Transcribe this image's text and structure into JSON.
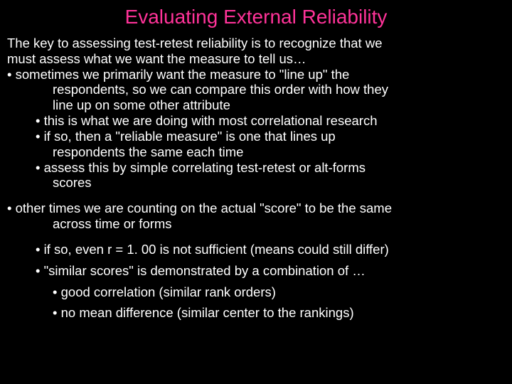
{
  "title_color": "#ff3399",
  "text_color": "#ffffff",
  "background_color": "#000000",
  "title": "Evaluating External Reliability",
  "intro1": "The key to assessing test-retest reliability is to recognize that we",
  "intro2": "must assess what we want the measure to tell us…",
  "b1_l1": "• sometimes we primarily want the measure to \"line up\" the",
  "b1_l2": "respondents, so we can compare this order with how they",
  "b1_l3": "line up on some other attribute",
  "b1a": "• this is what we are doing with most correlational research",
  "b1b_l1": "• if so, then a \"reliable measure\" is one that lines up",
  "b1b_l2": "respondents the same each time",
  "b1c_l1": "• assess this by simple correlating test-retest or alt-forms",
  "b1c_l2": "scores",
  "b2_l1": "• other times we are counting on the actual \"score\" to be the same",
  "b2_l2": "across time or forms",
  "b2a": "• if so, even r = 1. 00 is not sufficient (means could still differ)",
  "b2b": "• \"similar scores\" is demonstrated by a combination of …",
  "b2b1": "• good correlation (similar rank orders)",
  "b2b2": "• no mean difference (similar center to the rankings)"
}
